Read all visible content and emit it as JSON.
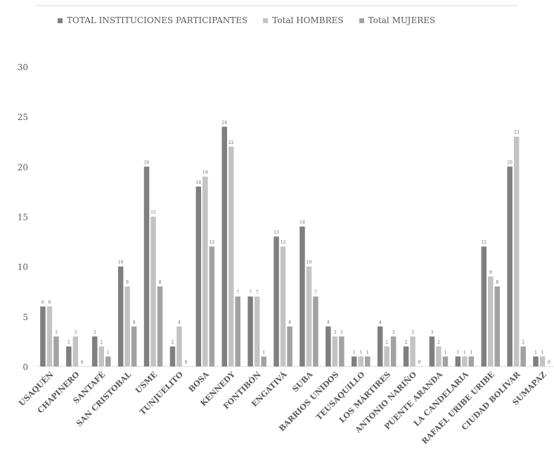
{
  "chart_data": {
    "type": "bar",
    "categories": [
      "USAQUÉN",
      "CHAPINERO",
      "SANTAFÉ",
      "SAN CRISTOBAL",
      "USME",
      "TUNJUELITO",
      "BOSA",
      "KENNEDY",
      "FONTIBÓN",
      "ENGATIVÁ",
      "SUBA",
      "BARRIOS UNIDOS",
      "TEUSAQUILLO",
      "LOS MÁRTIRES",
      "ANTONIO NARIÑO",
      "PUENTE ARANDA",
      "LA CANDELARIA",
      "RAFAEL URIBE URIBE",
      "CIUDAD BOLÍVAR",
      "SUMAPAZ"
    ],
    "series": [
      {
        "name": "TOTAL INSTITUCIONES PARTICIPANTES",
        "color": "#7f7f7f",
        "values": [
          6,
          2,
          3,
          10,
          20,
          2,
          18,
          24,
          7,
          13,
          14,
          4,
          1,
          4,
          2,
          3,
          1,
          12,
          20,
          1
        ]
      },
      {
        "name": "Total HOMBRES",
        "color": "#c3c3c3",
        "values": [
          6,
          3,
          2,
          8,
          15,
          4,
          19,
          22,
          7,
          12,
          10,
          3,
          1,
          2,
          3,
          2,
          1,
          9,
          23,
          1
        ]
      },
      {
        "name": "Total MUJERES",
        "color": "#a2a2a2",
        "values": [
          3,
          0,
          1,
          4,
          8,
          0,
          12,
          7,
          1,
          4,
          7,
          3,
          1,
          3,
          0,
          1,
          1,
          8,
          2,
          0
        ]
      }
    ],
    "ylim": [
      0,
      30
    ],
    "yticks": [
      0,
      5,
      10,
      15,
      20,
      25,
      30
    ],
    "grid": false,
    "legend_position": "top"
  }
}
